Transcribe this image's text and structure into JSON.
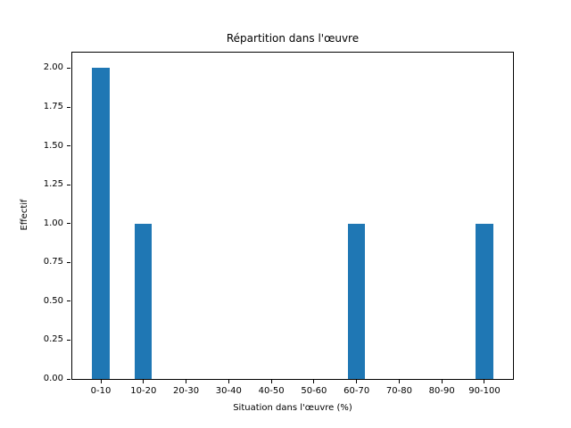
{
  "chart_data": {
    "type": "bar",
    "title": "Répartition dans l'œuvre",
    "xlabel": "Situation dans l'œuvre (%)",
    "ylabel": "Effectif",
    "categories": [
      "0-10",
      "10-20",
      "20-30",
      "30-40",
      "40-50",
      "50-60",
      "60-70",
      "70-80",
      "80-90",
      "90-100"
    ],
    "values": [
      2,
      1,
      0,
      0,
      0,
      0,
      1,
      0,
      0,
      1
    ],
    "ytick_labels": [
      "0.00",
      "0.25",
      "0.50",
      "0.75",
      "1.00",
      "1.25",
      "1.50",
      "1.75",
      "2.00"
    ],
    "ylim": [
      0,
      2.1
    ],
    "bar_color": "#1f77b4",
    "axis_color": "#000000",
    "grid": false,
    "legend": null
  }
}
